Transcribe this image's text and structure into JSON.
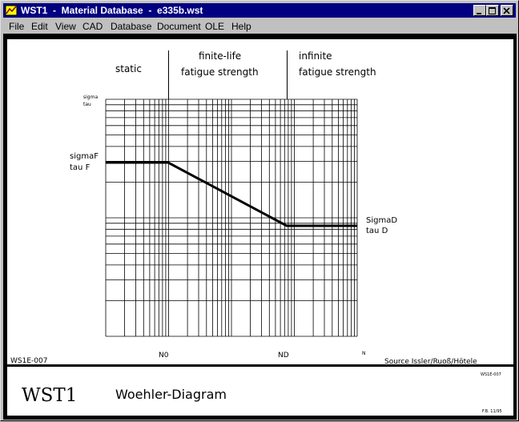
{
  "window": {
    "title": "WST1  -  Material Database  -  e335b.wst"
  },
  "menu": {
    "file": "File",
    "edit": "Edit",
    "view": "View",
    "cad": "CAD",
    "database": "Database",
    "document": "Document",
    "ole": "OLE",
    "help": "Help"
  },
  "diagram": {
    "region_static": "static",
    "region_finite_line1": "finite-life",
    "region_finite_line2": "fatigue strength",
    "region_infinite_line1": "infinite",
    "region_infinite_line2": "fatigue strength",
    "y_axis_label_line1": "sigma",
    "y_axis_label_line2": "tau",
    "sigmaF_line1": "sigmaF",
    "sigmaF_line2": "tau F",
    "sigmaD_line1": "SigmaD",
    "sigmaD_line2": "tau D",
    "tick_N0": "N0",
    "tick_ND": "ND",
    "x_axis_label": "N",
    "drawing_id": "WS1E-007",
    "source": "Source  Issler/Ruoß/Hötele"
  },
  "titleblock": {
    "logo": "WST1",
    "title": "Woehler-Diagram",
    "drawing_code": "WS1E-007",
    "revision": "F.B. 11/95"
  }
}
